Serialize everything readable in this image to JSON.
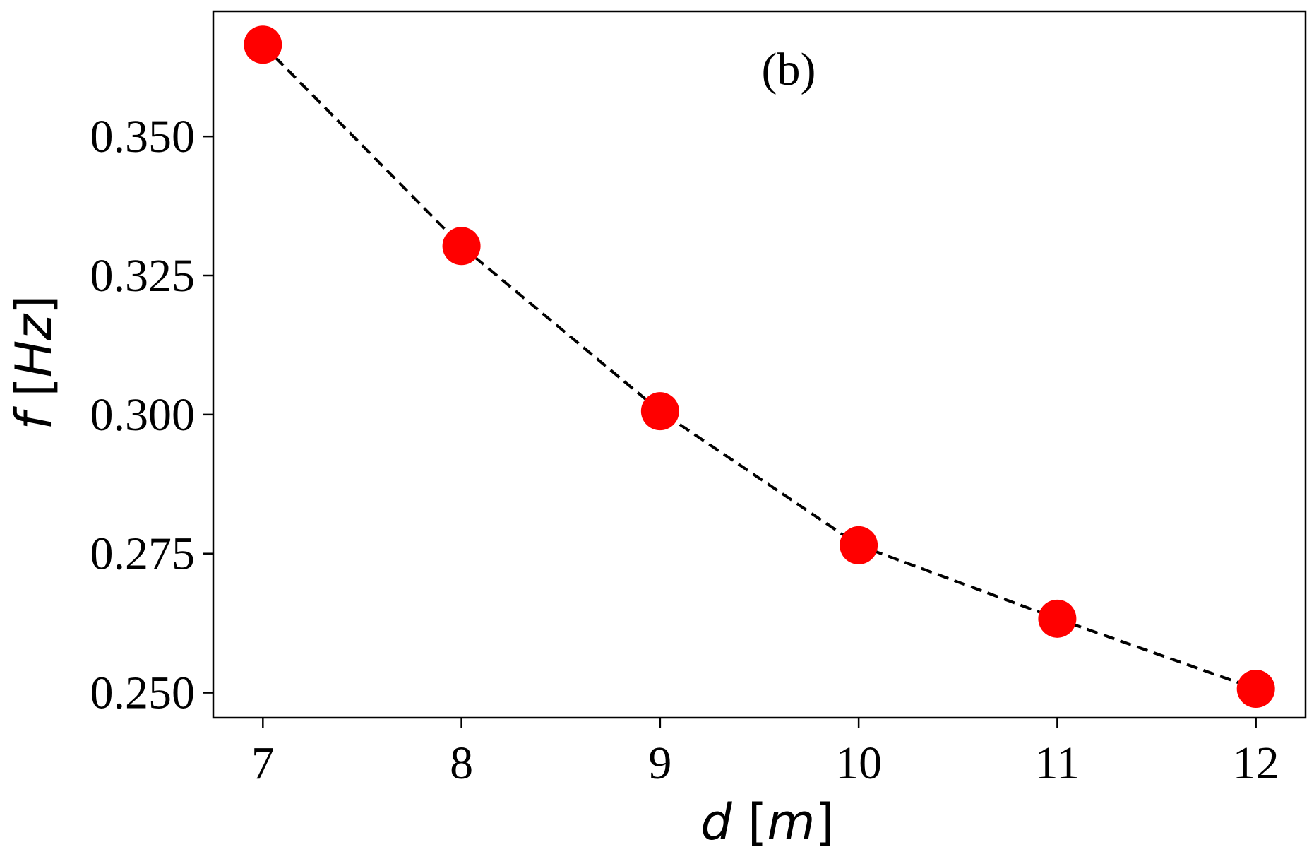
{
  "chart_data": {
    "type": "line",
    "annotation": "(b)",
    "xlabel": {
      "var": "d",
      "unit": "m"
    },
    "ylabel": {
      "var": "f",
      "unit": "Hz"
    },
    "xlim": [
      6.75,
      12.25
    ],
    "ylim": [
      0.2455,
      0.3725
    ],
    "xticks": [
      7,
      8,
      9,
      10,
      11,
      12
    ],
    "yticks": [
      0.25,
      0.275,
      0.3,
      0.325,
      0.35
    ],
    "ytick_labels": [
      "0.250",
      "0.275",
      "0.300",
      "0.325",
      "0.350"
    ],
    "grid": false,
    "line_style": "dashed",
    "line_color": "#000000",
    "marker_color": "#ff0000",
    "series": [
      {
        "x": [
          7,
          8,
          9,
          10,
          11,
          12
        ],
        "y": [
          0.3665,
          0.3303,
          0.3006,
          0.2765,
          0.2633,
          0.2507
        ]
      }
    ]
  }
}
